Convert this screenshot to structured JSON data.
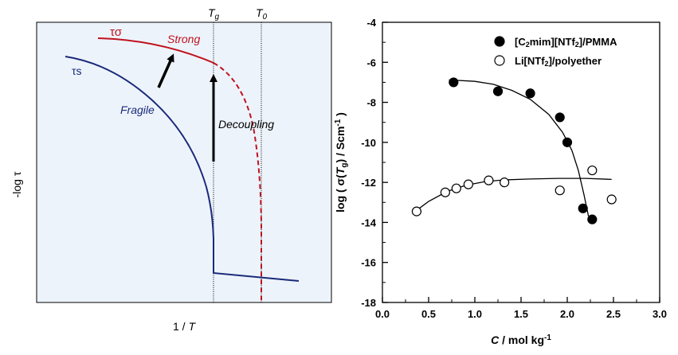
{
  "chart_data": [
    {
      "type": "line",
      "ylabel": "-log τ",
      "xlabel": "1 / T",
      "grid": false,
      "background": "#edf3fb",
      "vlines": [
        "Tg",
        "T0"
      ],
      "series": [
        {
          "name": "τs",
          "color": "#1a2a7a",
          "label": "Fragile"
        },
        {
          "name": "τσ",
          "color": "#c0121e",
          "label": "Strong"
        }
      ],
      "annotations": [
        "Decoupling"
      ]
    },
    {
      "type": "scatter",
      "xlabel": "C / mol kg-1",
      "ylabel": "log ( σ(Tg) / Scm-1 )",
      "xlim": [
        0.0,
        3.0
      ],
      "ylim": [
        -18,
        -4
      ],
      "xticks": [
        "0.0",
        "0.5",
        "1.0",
        "1.5",
        "2.0",
        "2.5",
        "3.0"
      ],
      "yticks": [
        "-4",
        "-6",
        "-8",
        "-10",
        "-12",
        "-14",
        "-16",
        "-18"
      ],
      "legend_position": "top-right",
      "series": [
        {
          "name": "[C2mim][NTf2]/PMMA",
          "marker": "filled-circle",
          "points": [
            [
              0.77,
              -7.0
            ],
            [
              1.25,
              -7.45
            ],
            [
              1.6,
              -7.55
            ],
            [
              1.92,
              -8.75
            ],
            [
              2.0,
              -10.0
            ],
            [
              2.17,
              -13.3
            ],
            [
              2.27,
              -13.85
            ]
          ],
          "fit_curve": [
            [
              0.72,
              -6.88
            ],
            [
              1.0,
              -6.95
            ],
            [
              1.2,
              -7.1
            ],
            [
              1.4,
              -7.4
            ],
            [
              1.6,
              -7.85
            ],
            [
              1.8,
              -8.6
            ],
            [
              1.95,
              -9.5
            ],
            [
              2.05,
              -10.4
            ],
            [
              2.12,
              -11.4
            ],
            [
              2.18,
              -12.6
            ],
            [
              2.23,
              -13.7
            ]
          ]
        },
        {
          "name": "Li[NTf2]/polyether",
          "marker": "open-circle",
          "points": [
            [
              0.37,
              -13.45
            ],
            [
              0.68,
              -12.5
            ],
            [
              0.8,
              -12.3
            ],
            [
              0.93,
              -12.1
            ],
            [
              1.15,
              -11.9
            ],
            [
              1.32,
              -12.0
            ],
            [
              1.92,
              -12.4
            ],
            [
              2.27,
              -11.4
            ],
            [
              2.48,
              -12.85
            ]
          ],
          "fit_curve": [
            [
              0.37,
              -13.4
            ],
            [
              0.5,
              -12.95
            ],
            [
              0.7,
              -12.45
            ],
            [
              0.9,
              -12.15
            ],
            [
              1.1,
              -11.97
            ],
            [
              1.3,
              -11.88
            ],
            [
              1.6,
              -11.83
            ],
            [
              1.9,
              -11.8
            ],
            [
              2.2,
              -11.8
            ],
            [
              2.48,
              -11.85
            ]
          ]
        }
      ]
    }
  ]
}
